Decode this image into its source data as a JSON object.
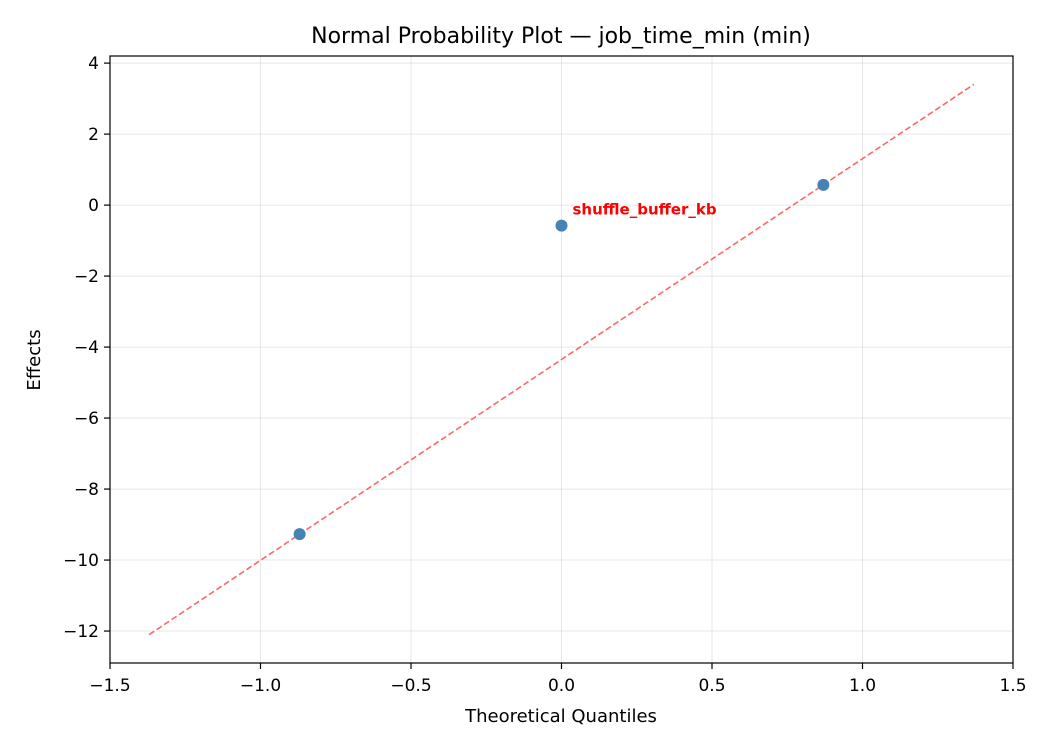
{
  "chart_data": {
    "type": "scatter",
    "title": "Normal Probability Plot — job_time_min (min)",
    "xlabel": "Theoretical Quantiles",
    "ylabel": "Effects",
    "xlim": [
      -1.5,
      1.5
    ],
    "ylim": [
      -12.9,
      4.2
    ],
    "xticks": [
      -1.5,
      -1.0,
      -0.5,
      0.0,
      0.5,
      1.0,
      1.5
    ],
    "xtick_labels": [
      "−1.5",
      "−1.0",
      "−0.5",
      "0.0",
      "0.5",
      "1.0",
      "1.5"
    ],
    "yticks": [
      -12,
      -10,
      -8,
      -6,
      -4,
      -2,
      0,
      2,
      4
    ],
    "ytick_labels": [
      "−12",
      "−10",
      "−8",
      "−6",
      "−4",
      "−2",
      "0",
      "2",
      "4"
    ],
    "grid": true,
    "series": [
      {
        "type": "scatter",
        "color": "#4682b4",
        "points": [
          {
            "x": -0.87,
            "y": -9.27
          },
          {
            "x": 0.0,
            "y": -0.58
          },
          {
            "x": 0.87,
            "y": 0.57
          }
        ]
      },
      {
        "type": "line",
        "style": "dashed",
        "color": "#ff6666",
        "points": [
          {
            "x": -1.37,
            "y": -12.1
          },
          {
            "x": 1.37,
            "y": 3.4
          }
        ]
      }
    ],
    "annotations": [
      {
        "text": "shuffle_buffer_kb",
        "x": 0.0,
        "y": -0.58,
        "color": "#ff0000"
      }
    ]
  }
}
